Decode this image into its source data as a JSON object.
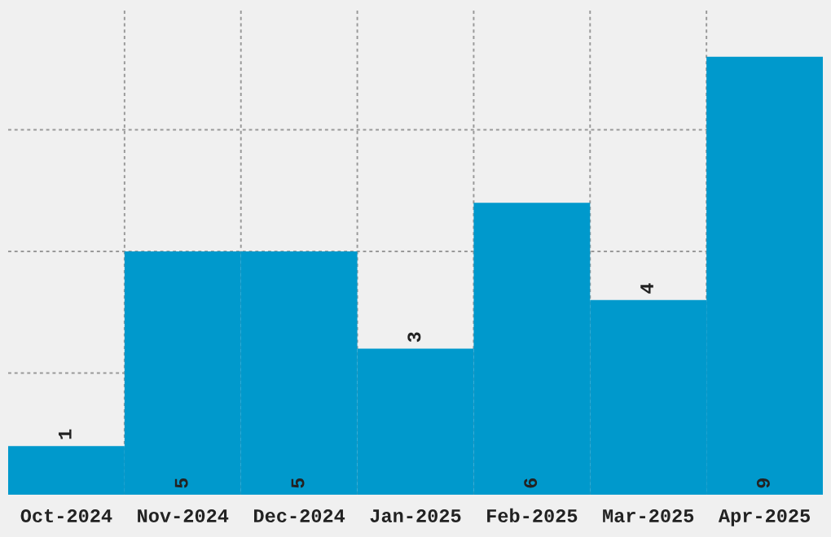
{
  "chart_data": {
    "type": "bar",
    "categories": [
      "Oct-2024",
      "Nov-2024",
      "Dec-2024",
      "Jan-2025",
      "Feb-2025",
      "Mar-2025",
      "Apr-2025"
    ],
    "values": [
      1,
      5,
      5,
      3,
      6,
      4,
      9
    ],
    "color": "#0099cc",
    "ylim": [
      0,
      10
    ],
    "yticks": [
      {
        "value": 2.5,
        "label": null
      },
      {
        "value": 5,
        "label": null
      },
      {
        "value": 7.5,
        "label": null
      }
    ],
    "tick_labels": "x",
    "grid": true,
    "data_labels": true
  }
}
